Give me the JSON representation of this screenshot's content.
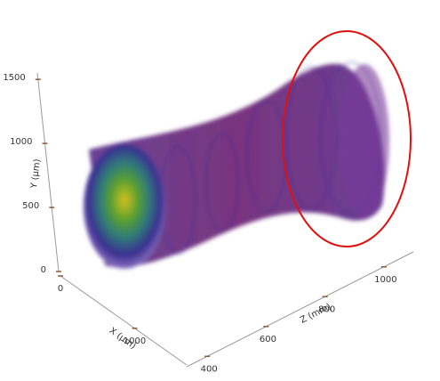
{
  "chart_data": {
    "type": "volume3d",
    "axes": [
      {
        "label": "Y (µm)",
        "lim": [
          0,
          1550
        ],
        "ticks": [
          0,
          500,
          1000,
          1500
        ]
      },
      {
        "label": "X (µm)",
        "lim": [
          0,
          1700
        ],
        "ticks": [
          0,
          1000
        ]
      },
      {
        "label": "Z (mm)",
        "lim": [
          330,
          1100
        ],
        "ticks": [
          400,
          600,
          800,
          1000
        ]
      }
    ],
    "highlight_color": "#e01010"
  }
}
